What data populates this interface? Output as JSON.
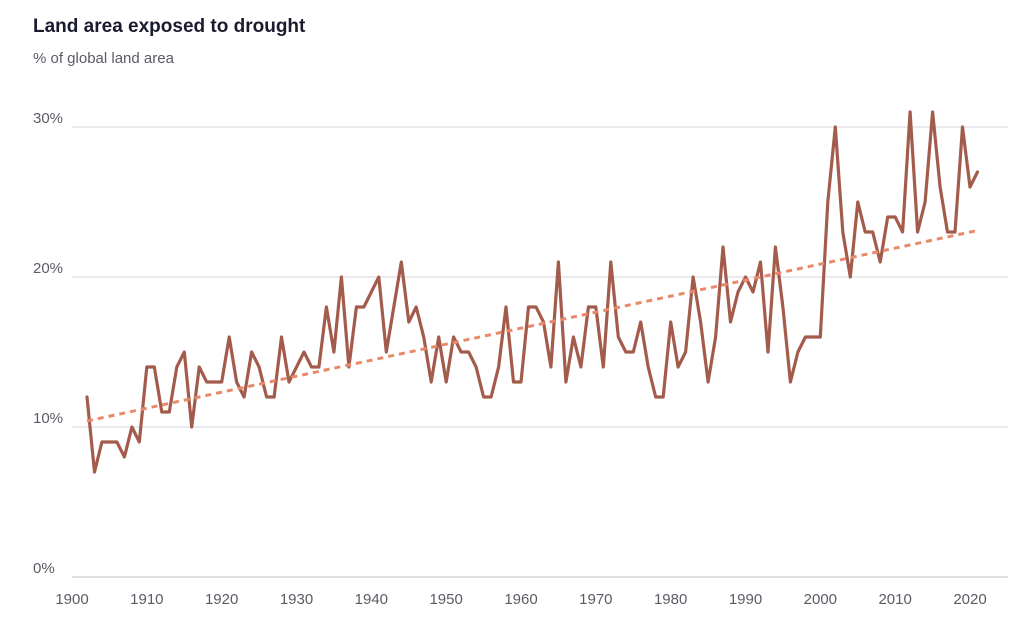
{
  "chart_data": {
    "type": "line",
    "title": "Land area exposed to drought",
    "subtitle": "% of global land area",
    "xlabel": "",
    "ylabel": "",
    "xlim": [
      1900,
      2023
    ],
    "ylim": [
      0,
      30
    ],
    "y_ticks": [
      {
        "value": 0,
        "label": "0%"
      },
      {
        "value": 10,
        "label": "10%"
      },
      {
        "value": 20,
        "label": "20%"
      },
      {
        "value": 30,
        "label": "30%"
      }
    ],
    "x_ticks": [
      {
        "value": 1900,
        "label": "1900"
      },
      {
        "value": 1910,
        "label": "1910"
      },
      {
        "value": 1920,
        "label": "1920"
      },
      {
        "value": 1930,
        "label": "1930"
      },
      {
        "value": 1940,
        "label": "1940"
      },
      {
        "value": 1950,
        "label": "1950"
      },
      {
        "value": 1960,
        "label": "1960"
      },
      {
        "value": 1970,
        "label": "1970"
      },
      {
        "value": 1980,
        "label": "1980"
      },
      {
        "value": 1990,
        "label": "1990"
      },
      {
        "value": 2000,
        "label": "2000"
      },
      {
        "value": 2010,
        "label": "2010"
      },
      {
        "value": 2020,
        "label": "2020"
      }
    ],
    "grid": true,
    "series": [
      {
        "style": "solid",
        "color": "#a35c4c",
        "x": [
          1902,
          1903,
          1904,
          1905,
          1906,
          1907,
          1908,
          1909,
          1910,
          1911,
          1912,
          1913,
          1914,
          1915,
          1916,
          1917,
          1918,
          1919,
          1920,
          1921,
          1922,
          1923,
          1924,
          1925,
          1926,
          1927,
          1928,
          1929,
          1930,
          1931,
          1932,
          1933,
          1934,
          1935,
          1936,
          1937,
          1938,
          1939,
          1940,
          1941,
          1942,
          1943,
          1944,
          1945,
          1946,
          1947,
          1948,
          1949,
          1950,
          1951,
          1952,
          1953,
          1954,
          1955,
          1956,
          1957,
          1958,
          1959,
          1960,
          1961,
          1962,
          1963,
          1964,
          1965,
          1966,
          1967,
          1968,
          1969,
          1970,
          1971,
          1972,
          1973,
          1974,
          1975,
          1976,
          1977,
          1978,
          1979,
          1980,
          1981,
          1982,
          1983,
          1984,
          1985,
          1986,
          1987,
          1988,
          1989,
          1990,
          1991,
          1992,
          1993,
          1994,
          1995,
          1996,
          1997,
          1998,
          1999,
          2000,
          2001,
          2002,
          2003,
          2004,
          2005,
          2006,
          2007,
          2008,
          2009,
          2010,
          2011,
          2012,
          2013,
          2014,
          2015,
          2016,
          2017,
          2018,
          2019,
          2020,
          2021
        ],
        "y": [
          12,
          7,
          9,
          9,
          9,
          8,
          10,
          9,
          14,
          14,
          11,
          11,
          14,
          15,
          10,
          14,
          13,
          13,
          13,
          16,
          13,
          12,
          15,
          14,
          12,
          12,
          16,
          13,
          14,
          15,
          14,
          14,
          18,
          15,
          20,
          14,
          18,
          18,
          19,
          20,
          15,
          18,
          21,
          17,
          18,
          16,
          13,
          16,
          13,
          16,
          15,
          15,
          14,
          12,
          12,
          14,
          18,
          13,
          13,
          18,
          18,
          17,
          14,
          21,
          13,
          16,
          14,
          18,
          18,
          14,
          21,
          16,
          15,
          15,
          17,
          14,
          12,
          12,
          17,
          14,
          15,
          20,
          17,
          13,
          16,
          22,
          17,
          19,
          20,
          19,
          21,
          15,
          22,
          18,
          13,
          15,
          16,
          16,
          16,
          25,
          30,
          23,
          20,
          25,
          23,
          23,
          21,
          24,
          24,
          23,
          31,
          23,
          25,
          31,
          26,
          23,
          23,
          30,
          26,
          27
        ]
      },
      {
        "style": "dashed",
        "color": "#e8896a",
        "x": [
          1902,
          2021
        ],
        "y": [
          10.4,
          23.1
        ]
      }
    ]
  }
}
